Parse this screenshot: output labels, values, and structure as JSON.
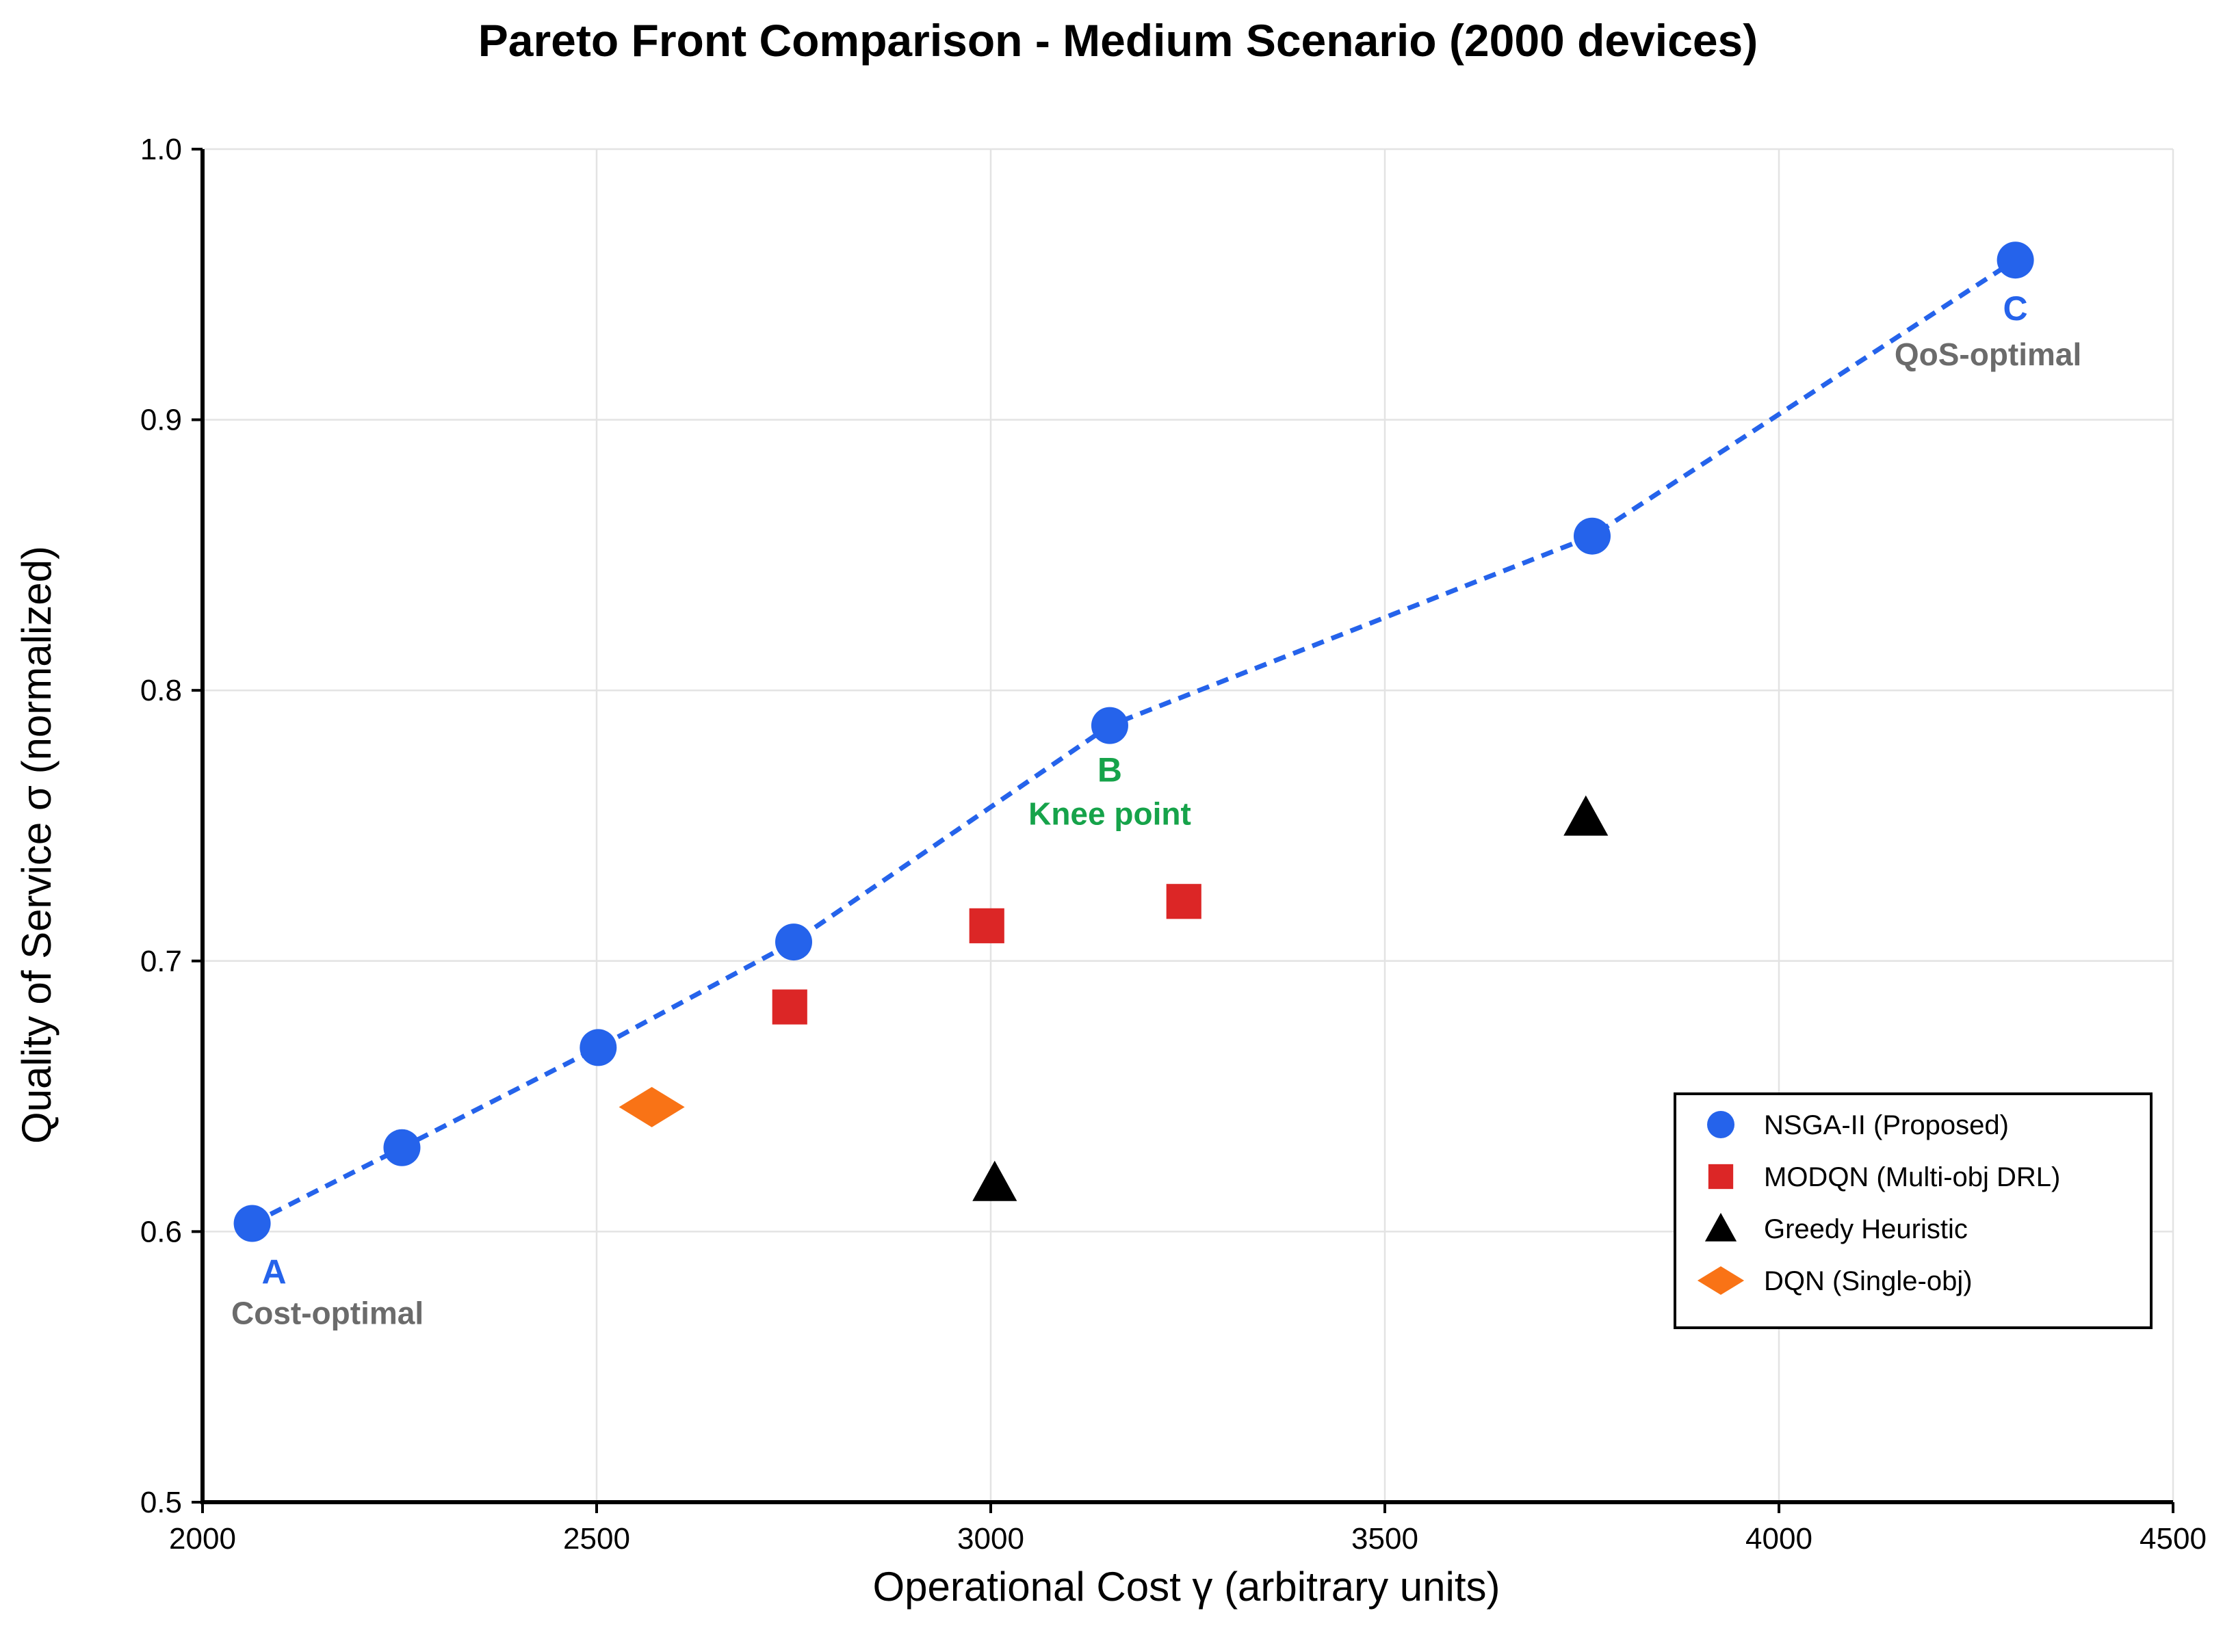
{
  "chart_data": {
    "type": "scatter",
    "title": "Pareto Front Comparison - Medium Scenario (2000 devices)",
    "xlabel": "Operational Cost γ (arbitrary units)",
    "ylabel": "Quality of Service σ (normalized)",
    "xlim": [
      2000,
      4500
    ],
    "ylim": [
      0.5,
      1.0
    ],
    "xticks": [
      2000,
      2500,
      3000,
      3500,
      4000,
      4500
    ],
    "yticks": [
      0.5,
      0.6,
      0.7,
      0.8,
      0.9,
      1.0
    ],
    "xtick_labels": [
      "2000",
      "2500",
      "3000",
      "3500",
      "4000",
      "4500"
    ],
    "ytick_labels": [
      "0.5",
      "0.6",
      "0.7",
      "0.8",
      "0.9",
      "1.0"
    ],
    "grid": true,
    "legend_position": "lower-right",
    "series": [
      {
        "name": "NSGA-II (Proposed)",
        "marker": "circle",
        "color": "#2563eb",
        "connect": "dashed",
        "points": [
          {
            "x": 2063,
            "y": 0.603
          },
          {
            "x": 2253,
            "y": 0.631
          },
          {
            "x": 2502,
            "y": 0.668
          },
          {
            "x": 2750,
            "y": 0.707
          },
          {
            "x": 3151,
            "y": 0.787
          },
          {
            "x": 3763,
            "y": 0.857
          },
          {
            "x": 4300,
            "y": 0.959
          }
        ]
      },
      {
        "name": "MODQN (Multi-obj DRL)",
        "marker": "square",
        "color": "#dc2626",
        "points": [
          {
            "x": 2745,
            "y": 0.683
          },
          {
            "x": 2995,
            "y": 0.713
          },
          {
            "x": 3245,
            "y": 0.722
          }
        ]
      },
      {
        "name": "Greedy Heuristic",
        "marker": "triangle",
        "color": "#000000",
        "points": [
          {
            "x": 3005,
            "y": 0.618
          },
          {
            "x": 3755,
            "y": 0.753
          }
        ]
      },
      {
        "name": "DQN (Single-obj)",
        "marker": "diamond",
        "color": "#f97316",
        "points": [
          {
            "x": 2570,
            "y": 0.646
          }
        ]
      }
    ],
    "annotations": [
      {
        "letter": "A",
        "label": "Cost-optimal",
        "x": 2063,
        "y": 0.603,
        "letter_color": "#2563eb",
        "label_color": "#6b6b6b"
      },
      {
        "letter": "B",
        "label": "Knee point",
        "x": 3151,
        "y": 0.787,
        "letter_color": "#16a34a",
        "label_color": "#16a34a"
      },
      {
        "letter": "C",
        "label": "QoS-optimal",
        "x": 4300,
        "y": 0.959,
        "letter_color": "#2563eb",
        "label_color": "#6b6b6b"
      }
    ]
  }
}
